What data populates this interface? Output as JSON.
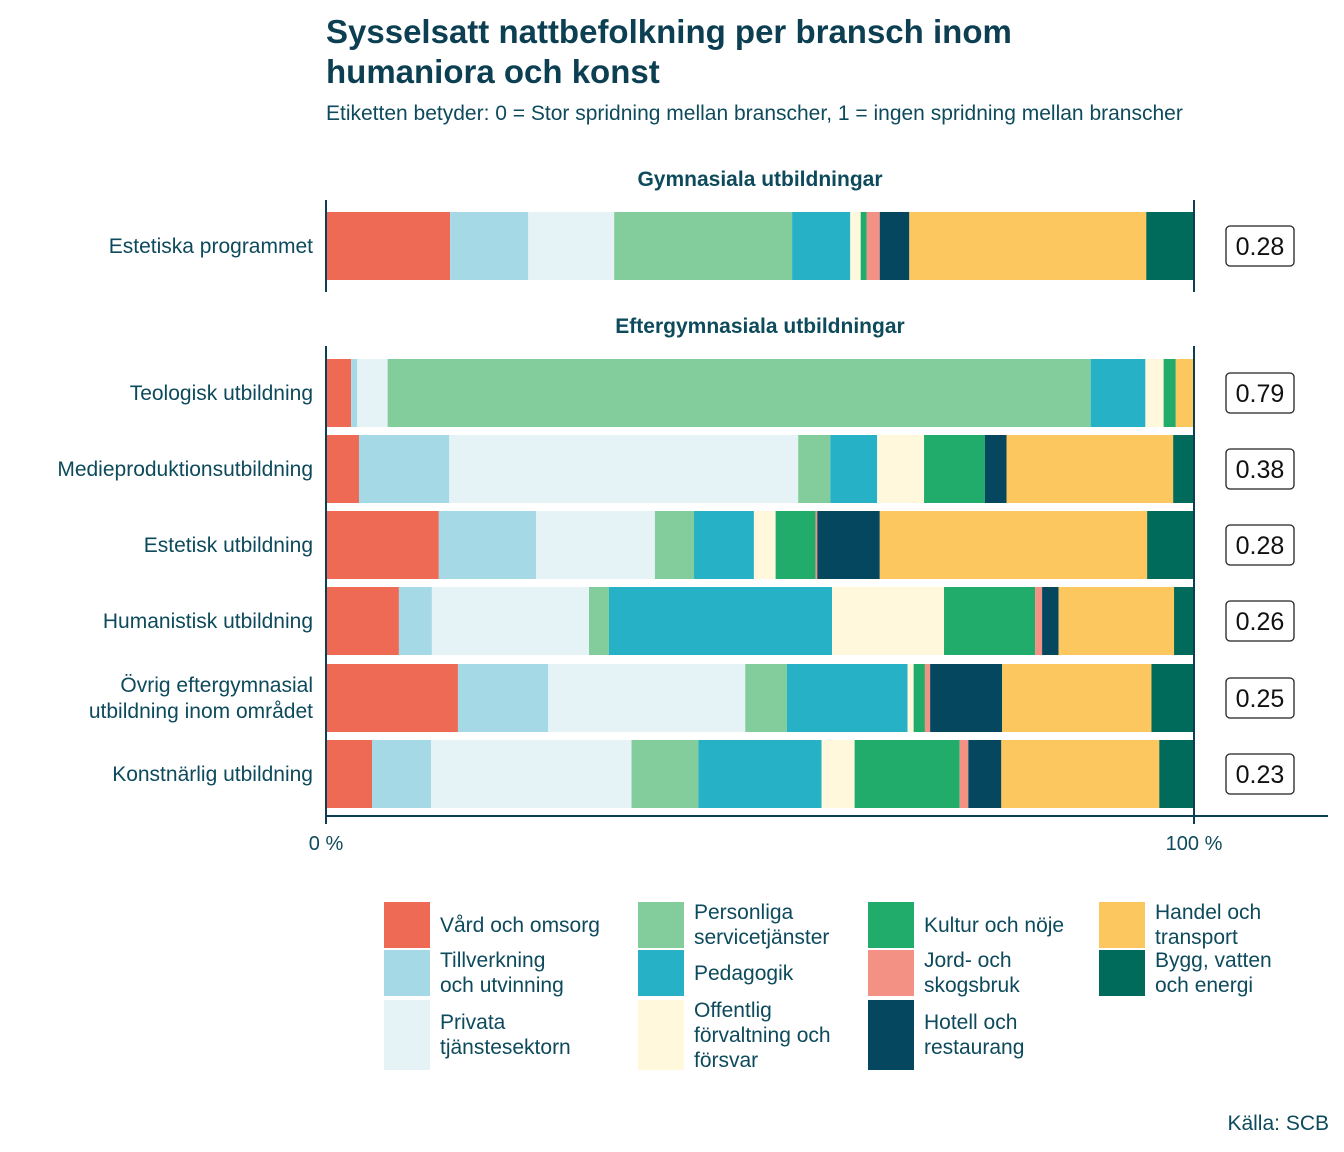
{
  "title_line1": "Sysselsatt nattbefolkning per bransch inom",
  "title_line2": "humaniora och konst",
  "subtitle": "Etiketten betyder: 0 = Stor spridning mellan branscher, 1 = ingen spridning mellan branscher",
  "source": "Källa: SCB",
  "chart_data": {
    "type": "bar",
    "orientation": "horizontal",
    "stacked": true,
    "normalized": true,
    "xlim": [
      0,
      100
    ],
    "x_ticks": [
      "0 %",
      "100 %"
    ],
    "industries": [
      {
        "name": "Vård och omsorg",
        "label_lines": [
          "Vård och omsorg"
        ],
        "color": "#ee6a55"
      },
      {
        "name": "Tillverkning och utvinning",
        "label_lines": [
          "Tillverkning",
          "och utvinning"
        ],
        "color": "#a6d9e6"
      },
      {
        "name": "Privata tjänstesektorn",
        "label_lines": [
          "Privata",
          "tjänstesektorn"
        ],
        "color": "#e5f2f6"
      },
      {
        "name": "Personliga servicetjänster",
        "label_lines": [
          "Personliga",
          "servicetjänster"
        ],
        "color": "#82cd9b"
      },
      {
        "name": "Pedagogik",
        "label_lines": [
          "Pedagogik"
        ],
        "color": "#27b1c6"
      },
      {
        "name": "Offentlig förvaltning och försvar",
        "label_lines": [
          "Offentlig",
          "förvaltning och",
          "försvar"
        ],
        "color": "#fff8dd"
      },
      {
        "name": "Kultur och nöje",
        "label_lines": [
          "Kultur och nöje"
        ],
        "color": "#21ac6c"
      },
      {
        "name": "Jord- och skogsbruk",
        "label_lines": [
          "Jord- och",
          "skogsbruk"
        ],
        "color": "#f39184"
      },
      {
        "name": "Hotell och restaurang",
        "label_lines": [
          "Hotell och",
          "restaurang"
        ],
        "color": "#04475e"
      },
      {
        "name": "Handel och transport",
        "label_lines": [
          "Handel och",
          "transport"
        ],
        "color": "#fcc75e"
      },
      {
        "name": "Bygg, vatten och energi",
        "label_lines": [
          "Bygg, vatten",
          "och energi"
        ],
        "color": "#006b5a"
      }
    ],
    "panels": [
      {
        "title": "Gymnasiala utbildningar",
        "rows": [
          {
            "label_lines": [
              "Estetiska programmet"
            ],
            "index": "0.28",
            "values": [
              14.3,
              9.0,
              9.9,
              20.5,
              6.7,
              1.2,
              0.7,
              1.5,
              3.4,
              27.3,
              5.5
            ]
          }
        ]
      },
      {
        "title": "Eftergymnasiala utbildningar",
        "rows": [
          {
            "label_lines": [
              "Teologisk utbildning"
            ],
            "index": "0.79",
            "values": [
              2.9,
              0.7,
              3.5,
              81.0,
              6.3,
              2.1,
              1.4,
              0.0,
              0.0,
              2.1,
              0.0
            ]
          },
          {
            "label_lines": [
              "Medieproduktionsutbildning"
            ],
            "index": "0.38",
            "values": [
              3.8,
              10.4,
              40.2,
              3.7,
              5.4,
              5.4,
              7.0,
              0.0,
              2.5,
              19.2,
              2.4
            ]
          },
          {
            "label_lines": [
              "Estetisk utbildning"
            ],
            "index": "0.28",
            "values": [
              13.0,
              11.2,
              13.7,
              4.5,
              6.9,
              2.5,
              4.6,
              0.2,
              7.2,
              30.8,
              5.4
            ]
          },
          {
            "label_lines": [
              "Humanistisk utbildning"
            ],
            "index": "0.26",
            "values": [
              8.4,
              3.8,
              18.1,
              2.3,
              25.7,
              12.9,
              10.5,
              0.8,
              1.9,
              13.3,
              2.3
            ]
          },
          {
            "label_lines": [
              "Övrig eftergymnasial",
              "utbildning inom området"
            ],
            "index": "0.25",
            "values": [
              15.2,
              10.4,
              22.7,
              4.8,
              13.9,
              0.7,
              1.3,
              0.6,
              8.3,
              17.2,
              4.9
            ]
          },
          {
            "label_lines": [
              "Konstnärlig utbildning"
            ],
            "index": "0.23",
            "values": [
              5.3,
              6.8,
              23.1,
              7.7,
              14.2,
              3.8,
              12.1,
              1.0,
              3.8,
              18.2,
              4.0
            ]
          }
        ]
      }
    ]
  }
}
